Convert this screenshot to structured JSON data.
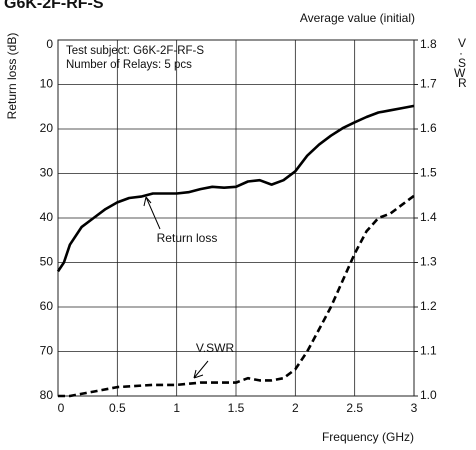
{
  "chart_data": {
    "type": "line",
    "title": "G6K-2F-RF-S",
    "subtitle": "Average value (initial)",
    "annotations": [
      "Test subject: G6K-2F-RF-S",
      "Number of Relays: 5 pcs",
      "Return loss",
      "V.SWR"
    ],
    "x_label": "Frequency (GHz)",
    "y_label": "Return loss (dB)",
    "y2_label": "V.SWR",
    "y_inverted": true,
    "xlim": [
      0,
      3
    ],
    "xticks": [
      0,
      0.5,
      1,
      1.5,
      2,
      2.5,
      3
    ],
    "ylim": [
      0,
      80
    ],
    "yticks": [
      0,
      10,
      20,
      30,
      40,
      50,
      60,
      70,
      80
    ],
    "y2lim": [
      1,
      1.8
    ],
    "y2ticks": [
      {
        "value": 1,
        "label": "1.0"
      },
      1.1,
      1.2,
      1.3,
      1.4,
      1.5,
      1.6,
      1.7,
      1.8
    ],
    "grid": true,
    "series": [
      {
        "name": "Return loss",
        "color": "#000000",
        "dash": false,
        "x": [
          0,
          0.05,
          0.1,
          0.2,
          0.3,
          0.4,
          0.5,
          0.6,
          0.7,
          0.8,
          0.9,
          1.0,
          1.1,
          1.2,
          1.3,
          1.4,
          1.5,
          1.6,
          1.7,
          1.8,
          1.9,
          2.0,
          2.1,
          2.2,
          2.3,
          2.4,
          2.5,
          2.6,
          2.7,
          2.8,
          2.9,
          3.0
        ],
        "values": [
          52,
          50,
          46,
          42,
          40,
          38,
          36.5,
          35.5,
          35.2,
          34.5,
          34.5,
          34.5,
          34.2,
          33.5,
          33,
          33.2,
          33,
          31.8,
          31.5,
          32.5,
          31.5,
          29.5,
          26,
          23.5,
          21.5,
          19.8,
          18.5,
          17.3,
          16.3,
          15.8,
          15.3,
          14.8
        ]
      },
      {
        "name": "V.SWR",
        "color": "#000000",
        "dash": true,
        "axis": "y2",
        "x": [
          0,
          0.1,
          0.3,
          0.5,
          0.8,
          1.0,
          1.2,
          1.5,
          1.6,
          1.7,
          1.8,
          1.9,
          2.0,
          2.1,
          2.2,
          2.3,
          2.4,
          2.5,
          2.6,
          2.7,
          2.8,
          2.9,
          3.0
        ],
        "values": [
          1.0,
          1.0,
          1.01,
          1.02,
          1.025,
          1.025,
          1.03,
          1.03,
          1.04,
          1.035,
          1.035,
          1.04,
          1.06,
          1.1,
          1.15,
          1.2,
          1.26,
          1.32,
          1.37,
          1.4,
          1.41,
          1.43,
          1.45
        ]
      }
    ]
  }
}
